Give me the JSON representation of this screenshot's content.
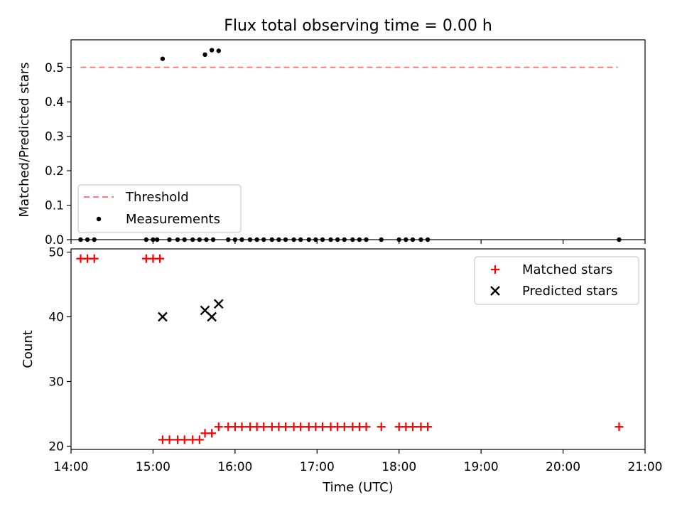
{
  "chart_data": [
    {
      "type": "scatter",
      "title": "Flux total observing time = 0.00 h",
      "ylabel": "Matched/Predicted stars",
      "xlim": [
        "14:00",
        "21:00"
      ],
      "ylim": [
        0,
        0.58
      ],
      "yticks": [
        "0.0",
        "0.1",
        "0.2",
        "0.3",
        "0.4",
        "0.5"
      ],
      "legend_placement": "lower-left",
      "threshold": {
        "name": "Threshold",
        "value": 0.5,
        "x_start": "14:07",
        "x_end": "20:40",
        "color": "#f08080",
        "style": "dashed"
      },
      "series": [
        {
          "name": "Measurements",
          "color": "#000000",
          "marker": "dot",
          "x": [
            "14:07",
            "14:12",
            "14:17",
            "14:55",
            "15:00",
            "15:03",
            "15:07",
            "15:12",
            "15:18",
            "15:23",
            "15:29",
            "15:34",
            "15:39",
            "15:44",
            "15:38",
            "15:43",
            "15:48",
            "15:55",
            "16:00",
            "16:05",
            "16:11",
            "16:16",
            "16:21",
            "16:27",
            "16:32",
            "16:37",
            "16:43",
            "16:48",
            "16:54",
            "16:59",
            "17:04",
            "17:10",
            "17:15",
            "17:20",
            "17:26",
            "17:31",
            "17:36",
            "17:47",
            "18:00",
            "18:05",
            "18:10",
            "18:16",
            "18:21",
            "20:41"
          ],
          "y": [
            0,
            0,
            0,
            0,
            0,
            0,
            0.525,
            0,
            0,
            0,
            0,
            0,
            0,
            0,
            0.537,
            0.55,
            0.548,
            0,
            0,
            0,
            0,
            0,
            0,
            0,
            0,
            0,
            0,
            0,
            0,
            0,
            0,
            0,
            0,
            0,
            0,
            0,
            0,
            0,
            0,
            0,
            0,
            0,
            0,
            0
          ]
        }
      ]
    },
    {
      "type": "scatter",
      "xlabel": "Time (UTC)",
      "ylabel": "Count",
      "xlim": [
        "14:00",
        "21:00"
      ],
      "xticks": [
        "14:00",
        "15:00",
        "16:00",
        "17:00",
        "18:00",
        "19:00",
        "20:00",
        "21:00"
      ],
      "ylim": [
        19.5,
        50.5
      ],
      "yticks": [
        "20",
        "30",
        "40",
        "50"
      ],
      "legend_placement": "upper-right",
      "series": [
        {
          "name": "Matched stars",
          "color": "#ff0000",
          "marker": "plus",
          "x": [
            "14:07",
            "14:12",
            "14:17",
            "14:55",
            "15:00",
            "15:05",
            "15:07",
            "15:12",
            "15:18",
            "15:23",
            "15:29",
            "15:34",
            "15:38",
            "15:43",
            "15:48",
            "15:55",
            "16:00",
            "16:05",
            "16:11",
            "16:16",
            "16:21",
            "16:27",
            "16:32",
            "16:37",
            "16:43",
            "16:48",
            "16:54",
            "16:59",
            "17:04",
            "17:10",
            "17:15",
            "17:20",
            "17:26",
            "17:31",
            "17:36",
            "17:47",
            "18:00",
            "18:05",
            "18:10",
            "18:16",
            "18:21",
            "20:41"
          ],
          "y": [
            49,
            49,
            49,
            49,
            49,
            49,
            21,
            21,
            21,
            21,
            21,
            21,
            22,
            22,
            23,
            23,
            23,
            23,
            23,
            23,
            23,
            23,
            23,
            23,
            23,
            23,
            23,
            23,
            23,
            23,
            23,
            23,
            23,
            23,
            23,
            23,
            23,
            23,
            23,
            23,
            23,
            23
          ]
        },
        {
          "name": "Predicted stars",
          "color": "#000000",
          "marker": "x",
          "x": [
            "15:07",
            "15:38",
            "15:43",
            "15:48"
          ],
          "y": [
            40,
            41,
            40,
            42
          ]
        }
      ]
    }
  ]
}
